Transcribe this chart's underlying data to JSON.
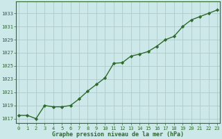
{
  "x": [
    0,
    1,
    2,
    3,
    4,
    5,
    6,
    7,
    8,
    9,
    10,
    11,
    12,
    13,
    14,
    15,
    16,
    17,
    18,
    19,
    20,
    21,
    22,
    23
  ],
  "y": [
    1017.5,
    1017.5,
    1017.0,
    1019.0,
    1018.8,
    1018.8,
    1019.0,
    1020.0,
    1021.2,
    1022.2,
    1023.2,
    1025.4,
    1025.5,
    1026.5,
    1026.8,
    1027.2,
    1028.0,
    1029.0,
    1029.5,
    1031.0,
    1032.0,
    1032.5,
    1033.0,
    1033.5
  ],
  "xlim": [
    -0.3,
    23.3
  ],
  "ylim": [
    1016.3,
    1034.8
  ],
  "yticks": [
    1017,
    1019,
    1021,
    1023,
    1025,
    1027,
    1029,
    1031,
    1033
  ],
  "xticks": [
    0,
    1,
    2,
    3,
    4,
    5,
    6,
    7,
    8,
    9,
    10,
    11,
    12,
    13,
    14,
    15,
    16,
    17,
    18,
    19,
    20,
    21,
    22,
    23
  ],
  "xlabel": "Graphe pression niveau de la mer (hPa)",
  "line_color": "#2d6a2d",
  "marker": "D",
  "marker_size": 2.2,
  "bg_color": "#cce8e8",
  "grid_color": "#b0c8c8",
  "line_width": 1.0,
  "tick_fontsize": 5.0,
  "xlabel_fontsize": 6.0
}
